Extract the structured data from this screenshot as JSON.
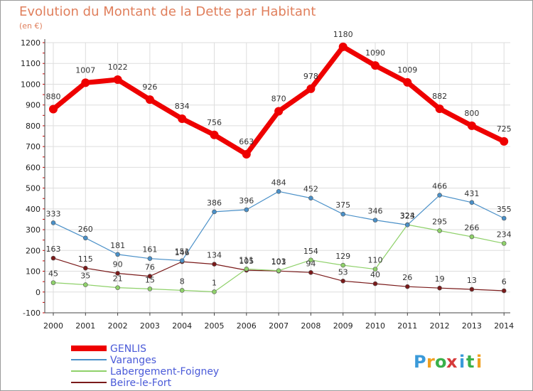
{
  "chart_data": {
    "type": "line",
    "title": "Evolution du Montant de la Dette par Habitant",
    "subtitle": "(en €)",
    "xlabel": "",
    "ylabel": "",
    "ylim": [
      -100,
      1200
    ],
    "y_ticks": [
      "-100",
      "0",
      "100",
      "200",
      "300",
      "400",
      "500",
      "600",
      "700",
      "800",
      "900",
      "1000",
      "1100",
      "1200"
    ],
    "y_tick_values": [
      -100,
      0,
      100,
      200,
      300,
      400,
      500,
      600,
      700,
      800,
      900,
      1000,
      1100,
      1200
    ],
    "categories": [
      "2000",
      "2001",
      "2002",
      "2003",
      "2004",
      "2005",
      "2006",
      "2007",
      "2008",
      "2009",
      "2010",
      "2011",
      "2012",
      "2013",
      "2014"
    ],
    "grid": true,
    "legend_position": "bottom-left",
    "series": [
      {
        "name": "GENLIS",
        "color": "#ee0000",
        "values": [
          880,
          1007,
          1022,
          926,
          834,
          756,
          663,
          870,
          978,
          1180,
          1090,
          1009,
          882,
          800,
          725
        ]
      },
      {
        "name": "Varanges",
        "color": "#4a90c8",
        "values": [
          333,
          260,
          181,
          161,
          151,
          386,
          396,
          484,
          452,
          375,
          346,
          323,
          466,
          431,
          355
        ]
      },
      {
        "name": "Labergement-Foigney",
        "color": "#8fd16a",
        "values": [
          45,
          35,
          21,
          15,
          8,
          1,
          111,
          103,
          154,
          129,
          110,
          324,
          295,
          266,
          234
        ]
      },
      {
        "name": "Beire-le-Fort",
        "color": "#7a1a1a",
        "values": [
          163,
          115,
          90,
          76,
          146,
          134,
          105,
          101,
          94,
          53,
          40,
          26,
          19,
          13,
          6
        ]
      }
    ]
  },
  "logo": {
    "text": "Proxiti",
    "letters": [
      "P",
      "r",
      "o",
      "x",
      "i",
      "t",
      "i"
    ]
  }
}
